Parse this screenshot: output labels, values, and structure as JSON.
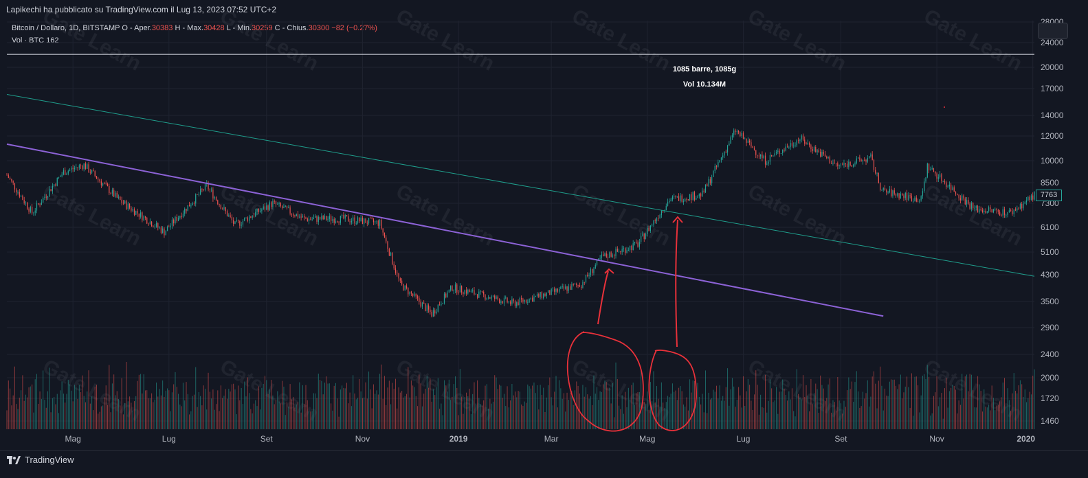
{
  "publisher_line": "Lapikechi ha pubblicato su TradingView.com il Lug 13, 2023 07:52 UTC+2",
  "legend": {
    "symbol": "Bitcoin / Dollaro, 1D, BITSTAMP",
    "open_label": "O",
    "open_text": "Aper.",
    "open_value": "30383",
    "high_label": "H",
    "high_text": "Max.",
    "high_value": "30428",
    "low_label": "L",
    "low_text": "Min.",
    "low_value": "30259",
    "close_label": "C",
    "close_text": "Chius.",
    "close_value": "30300",
    "change": "−82 (−0.27%)",
    "vol_label": "Vol · BTC",
    "vol_value": "162"
  },
  "measure": {
    "bars": "1085 barre, 1085g",
    "vol": "Vol 10.134M"
  },
  "last_price": "7763",
  "brand": "TradingView",
  "watermark": "Gate Learn",
  "colors": {
    "background": "#131722",
    "up": "#26a69a",
    "down": "#ef5350",
    "purple_line": "#8c62d6",
    "teal_line": "#1f9e8c",
    "annotation": "#e8313a",
    "grid": "#1f2330"
  },
  "chart_data": {
    "type": "candlestick",
    "title": "Bitcoin / Dollaro, 1D, BITSTAMP",
    "y_scale": "log",
    "y_ticks": [
      28000,
      24000,
      20000,
      17000,
      14000,
      12000,
      10000,
      8500,
      7300,
      6100,
      5100,
      4300,
      3500,
      2900,
      2400,
      2000,
      1720,
      1460
    ],
    "x_ticks": [
      "Mag",
      "Lug",
      "Set",
      "Nov",
      "2019",
      "Mar",
      "Mag",
      "Lug",
      "Set",
      "Nov",
      "2020"
    ],
    "x_range": [
      "2018-03-20",
      "2020-01-02"
    ],
    "price_path": [
      {
        "date": "2018-03-20",
        "price": 9000
      },
      {
        "date": "2018-04-05",
        "price": 6800
      },
      {
        "date": "2018-04-25",
        "price": 9200
      },
      {
        "date": "2018-05-08",
        "price": 9700
      },
      {
        "date": "2018-05-30",
        "price": 7500
      },
      {
        "date": "2018-06-28",
        "price": 5900
      },
      {
        "date": "2018-07-25",
        "price": 8300
      },
      {
        "date": "2018-08-12",
        "price": 6200
      },
      {
        "date": "2018-09-05",
        "price": 7300
      },
      {
        "date": "2018-09-25",
        "price": 6500
      },
      {
        "date": "2018-10-20",
        "price": 6500
      },
      {
        "date": "2018-11-12",
        "price": 6300
      },
      {
        "date": "2018-11-25",
        "price": 4000
      },
      {
        "date": "2018-12-15",
        "price": 3200
      },
      {
        "date": "2018-12-28",
        "price": 3900
      },
      {
        "date": "2019-02-05",
        "price": 3450
      },
      {
        "date": "2019-03-20",
        "price": 4000
      },
      {
        "date": "2019-04-02",
        "price": 4900
      },
      {
        "date": "2019-04-25",
        "price": 5400
      },
      {
        "date": "2019-05-15",
        "price": 7500
      },
      {
        "date": "2019-06-05",
        "price": 7800
      },
      {
        "date": "2019-06-26",
        "price": 12500
      },
      {
        "date": "2019-07-15",
        "price": 10000
      },
      {
        "date": "2019-08-06",
        "price": 11800
      },
      {
        "date": "2019-08-30",
        "price": 9600
      },
      {
        "date": "2019-09-20",
        "price": 10200
      },
      {
        "date": "2019-09-27",
        "price": 8000
      },
      {
        "date": "2019-10-22",
        "price": 7500
      },
      {
        "date": "2019-10-26",
        "price": 9600
      },
      {
        "date": "2019-11-25",
        "price": 7000
      },
      {
        "date": "2019-12-18",
        "price": 6800
      },
      {
        "date": "2020-01-02",
        "price": 7763
      }
    ],
    "trendlines": [
      {
        "name": "",
        "from": {
          "date": "2018-03-20",
          "price": 11300
        },
        "to": {
          "date": "2019-09-28",
          "price": 3150
        }
      },
      {
        "name": "",
        "from": {
          "date": "2018-03-20",
          "price": 16300
        },
        "to": {
          "date": "2020-01-02",
          "price": 4250
        }
      },
      {
        "name": "",
        "from": {
          "date": "2018-03-20",
          "price": 22000
        },
        "to": {
          "date": "2020-01-02",
          "price": 22000
        }
      }
    ],
    "volume_series": {
      "name": "Vol · BTC",
      "last": 162
    }
  }
}
